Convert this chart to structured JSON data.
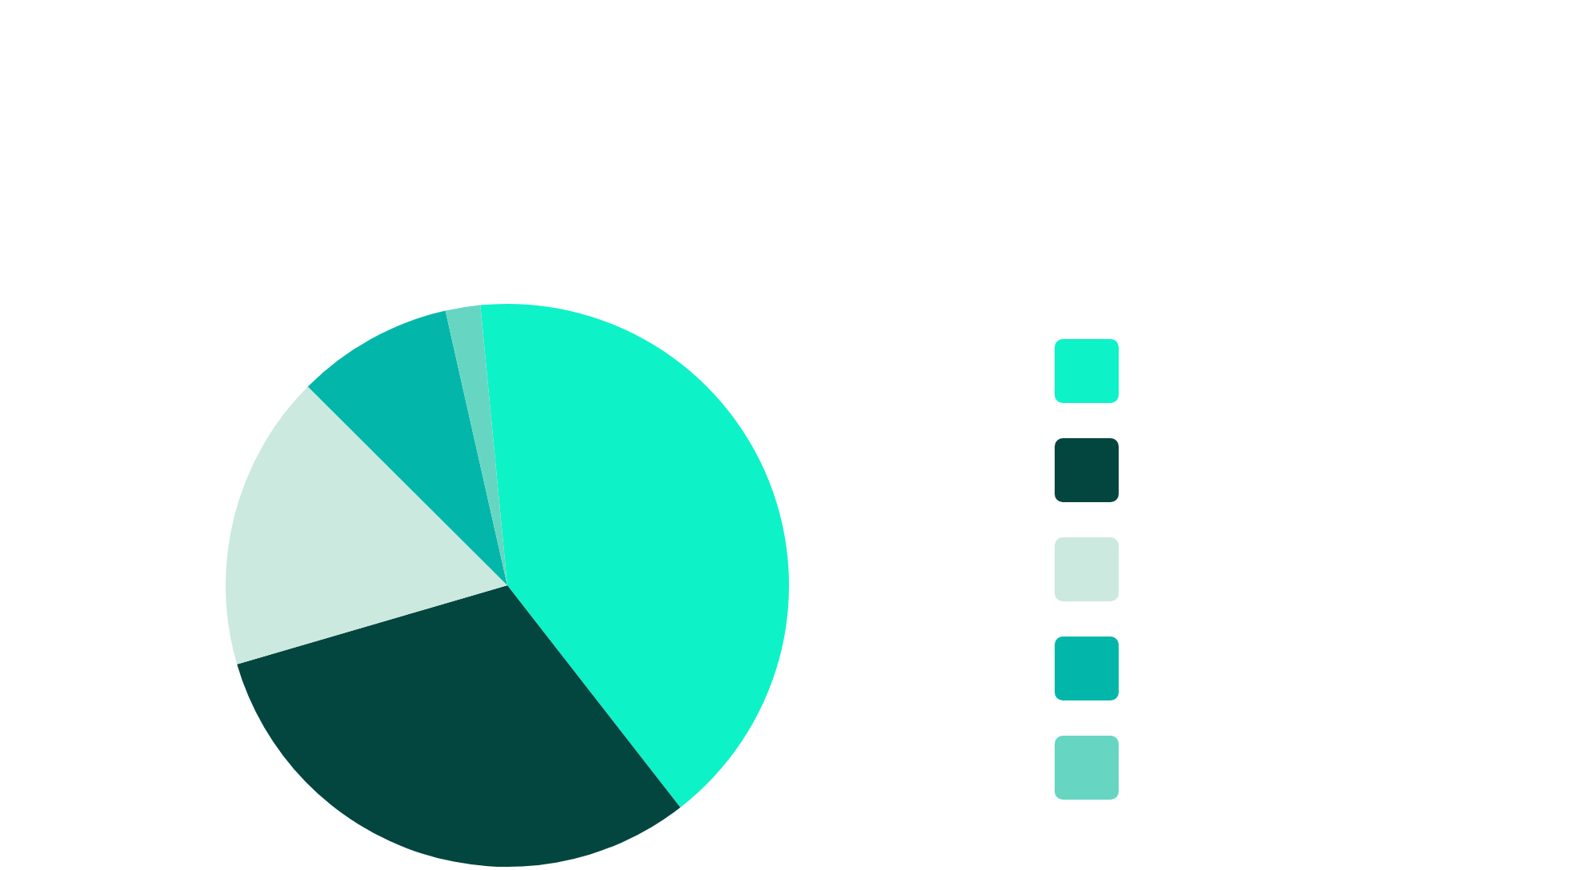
{
  "chart_data": {
    "type": "pie",
    "categories": [
      null,
      null,
      null,
      null,
      null
    ],
    "values": [
      41,
      31,
      17,
      9,
      2
    ],
    "colors": [
      "#0ef2c8",
      "#03463f",
      "#cbe9de",
      "#02b7aa",
      "#66d6c3"
    ]
  }
}
